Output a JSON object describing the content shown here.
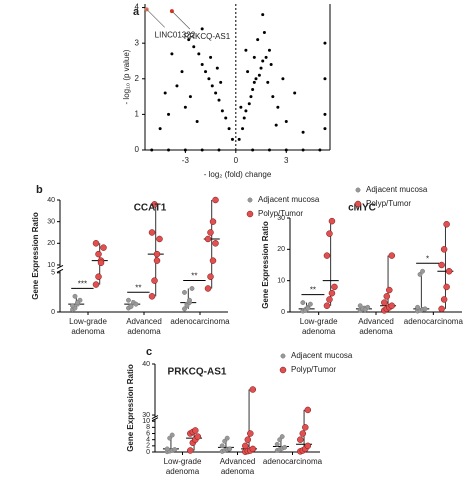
{
  "chart_data": [
    {
      "type": "scatter",
      "panel": "a",
      "xlabel": "- log₂ (fold) change",
      "ylabel": "- log₁₀ (p value)",
      "xlim": [
        -5.4,
        5.6
      ],
      "ylim": [
        0,
        4.1
      ],
      "xticks": [
        -3,
        0,
        3
      ],
      "yticks": [
        0,
        1,
        2,
        3,
        4
      ],
      "vline": 0,
      "color": "#000000",
      "x": [
        0.2,
        0.4,
        0.5,
        0.6,
        0.8,
        0.9,
        1.0,
        1.1,
        1.2,
        1.4,
        1.5,
        1.6,
        1.8,
        2.0,
        1.3,
        1.7,
        2.2,
        2.5,
        3,
        2.8,
        2.1,
        1.9,
        3.5,
        1.6,
        0.3,
        0.7,
        0.6,
        1.1,
        2.4,
        4.0,
        5.3,
        5.3,
        5.3,
        5.3,
        -0.2,
        -0.4,
        -0.6,
        -0.8,
        -1.0,
        -1.2,
        -1.4,
        -1.6,
        -1.8,
        -2.0,
        -2.2,
        -2.5,
        -2.8,
        -1.5,
        -3.2,
        -3.5,
        -2.7,
        -3.0,
        -4,
        -4.2,
        -2.3,
        -1.1,
        -0.9,
        -3.8,
        -4.5,
        -2.0,
        -5,
        -4,
        -3,
        -2,
        -1,
        1,
        2,
        3,
        4,
        5
      ],
      "values": [
        0.3,
        0.6,
        0.9,
        1.1,
        1.3,
        1.5,
        1.7,
        1.9,
        2.0,
        2.1,
        2.3,
        2.5,
        2.6,
        2.8,
        3.1,
        3.3,
        1.5,
        1.2,
        0.8,
        2.0,
        2.4,
        1.9,
        1.6,
        3.8,
        1.2,
        2.2,
        2.8,
        2.6,
        0.7,
        0.5,
        0.6,
        1.0,
        2.0,
        3.0,
        0.3,
        0.6,
        0.9,
        1.1,
        1.4,
        1.6,
        1.8,
        2.0,
        2.2,
        2.4,
        2.7,
        2.9,
        3.1,
        2.6,
        2.2,
        1.8,
        1.5,
        1.2,
        1.0,
        1.6,
        0.8,
        2.3,
        1.9,
        2.7,
        0.6,
        3.4,
        0,
        0,
        0,
        0,
        0,
        0,
        0,
        0,
        0,
        0
      ],
      "highlights": [
        {
          "label": "LINC01322",
          "x": -5.3,
          "y": 3.95,
          "color": "#e07050"
        },
        {
          "label": "PRKCQ-AS1",
          "x": -3.8,
          "y": 3.9,
          "color": "#e03020"
        }
      ]
    },
    {
      "type": "strip",
      "panel": "b",
      "title": "CCAT1",
      "ylabel": "Gene Expression Ratio",
      "categories": [
        [
          "Low-grade",
          "adenoma"
        ],
        [
          "Advanced",
          "adenoma"
        ],
        [
          "adenocarcinoma"
        ]
      ],
      "ylim": [
        0,
        40
      ],
      "ybreak": [
        5,
        10
      ],
      "yticks": [
        0,
        5,
        10,
        20,
        30,
        40
      ],
      "annotations": [
        "***",
        "**",
        "**"
      ],
      "series": [
        {
          "name": "Adjacent mucosa",
          "color": "#999999",
          "values": [
            [
              0.3,
              0.5,
              1.0,
              1.5,
              0.8,
              2.0,
              1.2
            ],
            [
              0.5,
              0.8,
              1.2,
              1.0,
              1.5,
              0.7
            ],
            [
              0.4,
              1.0,
              1.2,
              3.0,
              2.5,
              0.8,
              1.5
            ]
          ],
          "center": [
            1.0,
            1.0,
            1.2
          ]
        },
        {
          "name": "Polyp/Tumor",
          "color": "#e05050",
          "values": [
            [
              3.5,
              4.5,
              12,
              18,
              20,
              15,
              11
            ],
            [
              2,
              4,
              15,
              22,
              25,
              38,
              12
            ],
            [
              3,
              4.5,
              12,
              20,
              22,
              25,
              30,
              40
            ]
          ],
          "center": [
            12,
            15,
            22
          ]
        }
      ]
    },
    {
      "type": "strip",
      "title": "cMYC",
      "ylabel": "Gene Expression Ratio",
      "categories": [
        [
          "Low-grade",
          "adenoma"
        ],
        [
          "Advanced",
          "adenoma"
        ],
        [
          "adenocarcinoma"
        ]
      ],
      "ylim": [
        0,
        30
      ],
      "yticks": [
        0,
        10,
        20,
        30
      ],
      "annotations": [
        "**",
        null,
        "*"
      ],
      "series": [
        {
          "name": "Adjacent mucosa",
          "color": "#999999",
          "values": [
            [
              0.3,
              0.8,
              1.5,
              2.5,
              3,
              0.5,
              1.2
            ],
            [
              0.5,
              0.8,
              1.2,
              1.5,
              2,
              1,
              0.7
            ],
            [
              0.3,
              0.5,
              0.8,
              1.0,
              1.5,
              12,
              13
            ]
          ],
          "center": [
            1,
            1,
            1
          ]
        },
        {
          "name": "Polyp/Tumor",
          "color": "#e05050",
          "values": [
            [
              2,
              4,
              6,
              8,
              18,
              25,
              29
            ],
            [
              0.5,
              1,
              1.5,
              2,
              3,
              5,
              7,
              18
            ],
            [
              1,
              4,
              8,
              13,
              15,
              20,
              28
            ]
          ],
          "center": [
            10,
            2,
            13
          ]
        }
      ]
    },
    {
      "type": "strip",
      "panel": "c",
      "title": "PRKCQ-AS1",
      "ylabel": "Gene Expression Ratio",
      "categories": [
        [
          "Low-grade",
          "adenoma"
        ],
        [
          "Advanced",
          "adenoma"
        ],
        [
          "adenocarcinoma"
        ]
      ],
      "ylim": [
        0,
        40
      ],
      "ybreak": [
        10,
        30
      ],
      "yticks": [
        0,
        2,
        4,
        6,
        8,
        10,
        30,
        40
      ],
      "series": [
        {
          "name": "Adjacent mucosa",
          "color": "#999999",
          "values": [
            [
              0.1,
              0.3,
              0.5,
              0.8,
              1,
              4.5,
              5.5
            ],
            [
              0.2,
              0.5,
              0.8,
              1,
              2,
              3.5,
              4.5
            ],
            [
              0.5,
              0.8,
              1.2,
              1.5,
              2.5,
              4,
              5
            ]
          ],
          "center": [
            1,
            1.5,
            1.8
          ]
        },
        {
          "name": "Polyp/Tumor",
          "color": "#e05050",
          "values": [
            [
              0.5,
              3,
              4,
              5,
              6,
              6.5,
              7
            ],
            [
              0.1,
              0.3,
              0.5,
              1,
              2,
              4,
              6,
              35
            ],
            [
              0.2,
              0.5,
              1,
              2,
              4,
              6,
              8,
              31
            ]
          ],
          "center": [
            4.5,
            1,
            2.5
          ]
        }
      ]
    }
  ]
}
